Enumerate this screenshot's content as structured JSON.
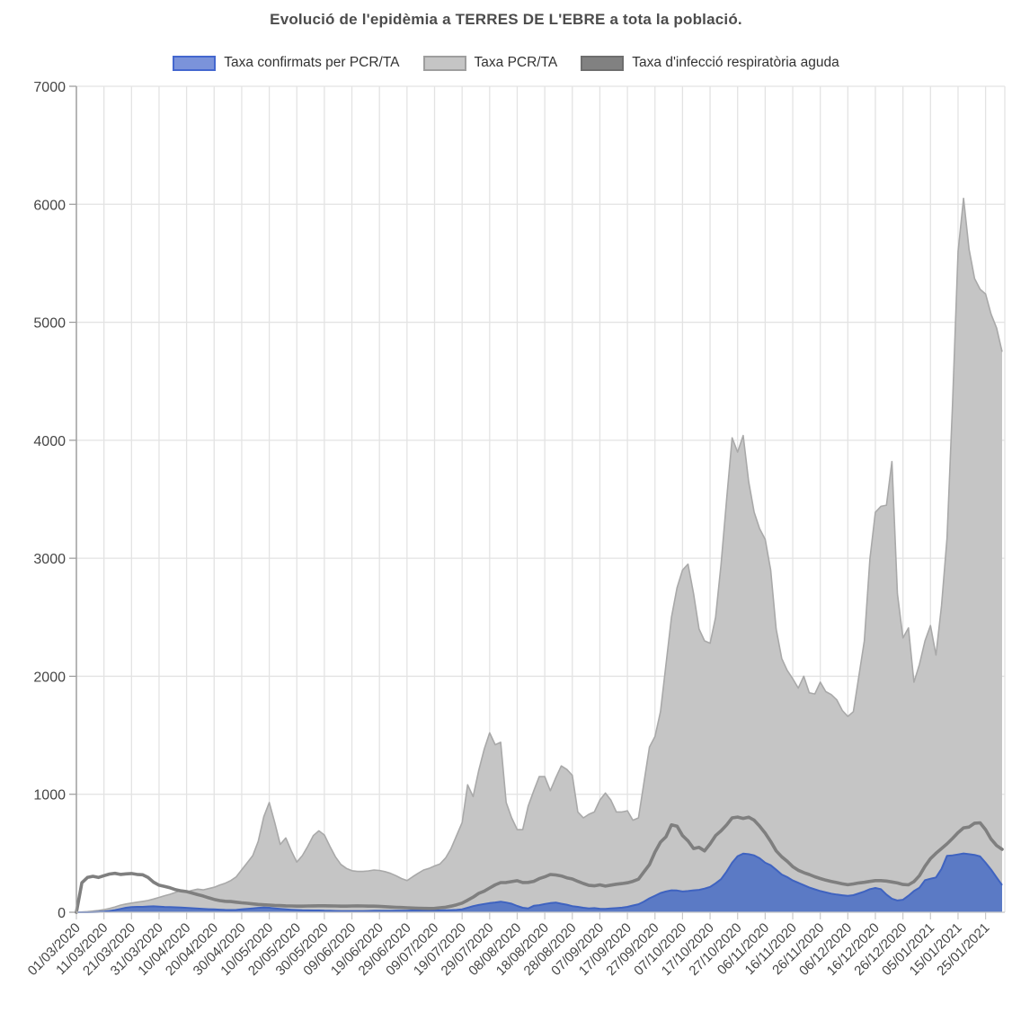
{
  "title": "Evolució de l'epidèmia a TERRES DE L'EBRE a tota la població.",
  "legend": {
    "items": [
      {
        "label": "Taxa confirmats per PCR/TA",
        "fill": "#7b93da",
        "border": "#4467cf"
      },
      {
        "label": "Taxa PCR/TA",
        "fill": "#c5c5c5",
        "border": "#9e9e9e"
      },
      {
        "label": "Taxa d'infecció respiratòria aguda",
        "fill": "#818181",
        "border": "#6e6e6e"
      }
    ]
  },
  "colors": {
    "pcr_area_fill": "#c5c5c5",
    "pcr_area_stroke": "#a9a9a9",
    "confirmats_fill": "#5b7ac5",
    "confirmats_stroke": "#3f63c0",
    "ira_line": "#7f7f7f",
    "gridline": "#e3e3e3",
    "axis_line": "#9a9a9a",
    "baseline": "#c9c9c9",
    "tick_text": "#454545"
  },
  "chart_data": {
    "type": "area",
    "title": "Evolució de l'epidèmia a TERRES DE L'EBRE a tota la població.",
    "xlabel": "",
    "ylabel": "",
    "ylim": [
      0,
      7000
    ],
    "grid": true,
    "legend_position": "top",
    "x_start": "01/03/2020",
    "x_end": "31/01/2021",
    "sample_interval_days": 2,
    "x_tick_labels": [
      "01/03/2020",
      "11/03/2020",
      "21/03/2020",
      "31/03/2020",
      "10/04/2020",
      "20/04/2020",
      "30/04/2020",
      "10/05/2020",
      "20/05/2020",
      "30/05/2020",
      "09/06/2020",
      "19/06/2020",
      "29/06/2020",
      "09/07/2020",
      "19/07/2020",
      "29/07/2020",
      "08/08/2020",
      "18/08/2020",
      "28/08/2020",
      "07/09/2020",
      "17/09/2020",
      "27/09/2020",
      "07/10/2020",
      "17/10/2020",
      "27/10/2020",
      "06/11/2020",
      "16/11/2020",
      "26/11/2020",
      "06/12/2020",
      "16/12/2020",
      "26/12/2020",
      "05/01/2021",
      "15/01/2021",
      "25/01/2021"
    ],
    "y_ticks": [
      0,
      1000,
      2000,
      3000,
      4000,
      5000,
      6000,
      7000
    ],
    "series": [
      {
        "name": "Taxa PCR/TA",
        "type": "area",
        "values": [
          0,
          2,
          5,
          10,
          15,
          22,
          32,
          45,
          60,
          70,
          78,
          85,
          92,
          100,
          112,
          126,
          140,
          152,
          168,
          185,
          172,
          185,
          196,
          190,
          200,
          212,
          230,
          246,
          268,
          300,
          360,
          420,
          480,
          600,
          810,
          930,
          760,
          575,
          630,
          520,
          425,
          480,
          560,
          650,
          690,
          655,
          560,
          470,
          405,
          372,
          352,
          346,
          346,
          350,
          358,
          354,
          344,
          330,
          310,
          286,
          268,
          300,
          330,
          358,
          372,
          392,
          410,
          460,
          540,
          650,
          760,
          1080,
          980,
          1200,
          1380,
          1520,
          1420,
          1440,
          930,
          800,
          700,
          700,
          900,
          1030,
          1150,
          1150,
          1030,
          1140,
          1240,
          1210,
          1160,
          850,
          800,
          830,
          850,
          950,
          1010,
          950,
          850,
          850,
          860,
          780,
          800,
          1100,
          1400,
          1490,
          1700,
          2100,
          2500,
          2750,
          2900,
          2950,
          2700,
          2400,
          2300,
          2280,
          2500,
          2950,
          3500,
          4020,
          3900,
          4040,
          3650,
          3390,
          3250,
          3160,
          2900,
          2400,
          2150,
          2050,
          1980,
          1900,
          2000,
          1860,
          1850,
          1950,
          1870,
          1845,
          1800,
          1710,
          1660,
          1700,
          2000,
          2300,
          2995,
          3390,
          3440,
          3450,
          3820,
          2700,
          2325,
          2410,
          1950,
          2100,
          2300,
          2430,
          2180,
          2600,
          3170,
          4300,
          5600,
          6050,
          5620,
          5370,
          5280,
          5240,
          5070,
          4950,
          4750
        ]
      },
      {
        "name": "Taxa confirmats per PCR/TA",
        "type": "area",
        "values": [
          0,
          0,
          0,
          1,
          3,
          6,
          11,
          18,
          28,
          38,
          44,
          46,
          46,
          49,
          50,
          47,
          45,
          44,
          42,
          40,
          37,
          34,
          31,
          28,
          26,
          24,
          22,
          20,
          19,
          20,
          24,
          28,
          33,
          37,
          40,
          38,
          33,
          28,
          24,
          21,
          19,
          17,
          16,
          15,
          15,
          13,
          12,
          11,
          10,
          10,
          10,
          10,
          10,
          11,
          12,
          12,
          12,
          12,
          13,
          13,
          14,
          15,
          15,
          15,
          15,
          15,
          16,
          17,
          18,
          20,
          25,
          38,
          52,
          62,
          70,
          78,
          83,
          90,
          82,
          72,
          53,
          38,
          32,
          55,
          60,
          70,
          78,
          82,
          72,
          64,
          52,
          46,
          38,
          33,
          35,
          30,
          28,
          32,
          35,
          39,
          46,
          57,
          68,
          91,
          118,
          140,
          163,
          176,
          186,
          184,
          176,
          180,
          186,
          190,
          200,
          215,
          245,
          280,
          345,
          420,
          475,
          497,
          492,
          482,
          458,
          420,
          398,
          360,
          320,
          298,
          270,
          250,
          230,
          210,
          194,
          180,
          168,
          158,
          150,
          144,
          139,
          145,
          160,
          176,
          196,
          206,
          196,
          150,
          115,
          100,
          106,
          140,
          180,
          208,
          272,
          284,
          295,
          368,
          478,
          482,
          490,
          498,
          492,
          486,
          473,
          420,
          362,
          295,
          230
        ]
      },
      {
        "name": "Taxa d'infecció respiratòria aguda",
        "type": "line",
        "values": [
          0,
          250,
          295,
          305,
          295,
          310,
          324,
          330,
          321,
          325,
          328,
          321,
          318,
          295,
          255,
          229,
          219,
          207,
          191,
          181,
          175,
          163,
          149,
          138,
          123,
          109,
          99,
          93,
          91,
          85,
          80,
          76,
          71,
          66,
          63,
          61,
          58,
          56,
          54,
          53,
          52,
          52,
          53,
          54,
          55,
          55,
          54,
          53,
          52,
          52,
          53,
          54,
          53,
          52,
          52,
          50,
          47,
          44,
          42,
          40,
          38,
          36,
          34,
          33,
          32,
          33,
          38,
          43,
          52,
          63,
          78,
          102,
          128,
          160,
          178,
          206,
          232,
          251,
          252,
          260,
          267,
          252,
          253,
          262,
          285,
          300,
          320,
          316,
          308,
          292,
          282,
          262,
          244,
          228,
          224,
          232,
          222,
          230,
          238,
          243,
          250,
          262,
          280,
          343,
          404,
          510,
          594,
          640,
          740,
          730,
          650,
          605,
          540,
          550,
          520,
          580,
          650,
          690,
          740,
          800,
          807,
          795,
          806,
          780,
          730,
          670,
          600,
          520,
          470,
          432,
          387,
          356,
          336,
          320,
          301,
          286,
          272,
          261,
          251,
          241,
          233,
          240,
          248,
          254,
          261,
          268,
          268,
          264,
          257,
          248,
          235,
          232,
          260,
          310,
          390,
          455,
          500,
          540,
          580,
          625,
          675,
          715,
          722,
          755,
          758,
          700,
          620,
          565,
          533
        ]
      }
    ]
  }
}
